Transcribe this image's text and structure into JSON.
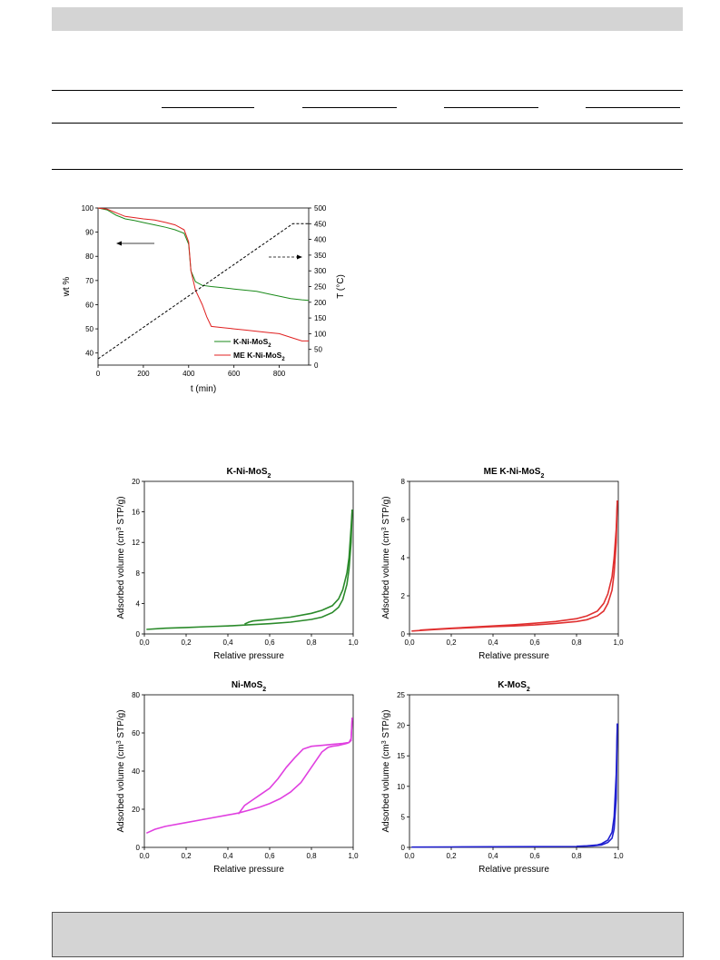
{
  "chart_data": [
    {
      "type": "line",
      "xlabel": "t (min)",
      "ylabel": "wt %",
      "y2label": "T (°C)",
      "xlim": [
        0,
        930
      ],
      "ylim": [
        35,
        100
      ],
      "y2lim": [
        0,
        500
      ],
      "xticks": [
        0,
        200,
        400,
        600,
        800
      ],
      "yticks": [
        40,
        50,
        60,
        70,
        80,
        90,
        100
      ],
      "y2ticks": [
        0,
        50,
        100,
        150,
        200,
        250,
        300,
        350,
        400,
        450,
        500
      ],
      "series": [
        {
          "name": "K-Ni-MoS2",
          "color": "#1a8a1a",
          "axis": "left",
          "x": [
            0,
            40,
            80,
            120,
            160,
            200,
            250,
            300,
            340,
            380,
            400,
            410,
            430,
            460,
            500,
            550,
            600,
            650,
            700,
            750,
            800,
            850,
            900,
            930
          ],
          "y": [
            100,
            99.2,
            97,
            95.5,
            94.8,
            94,
            93,
            92,
            91,
            89.5,
            85,
            74,
            69.5,
            68,
            67.5,
            67,
            66.5,
            66,
            65.5,
            64.5,
            63.5,
            62.5,
            62,
            61.8
          ]
        },
        {
          "name": "ME K-Ni-MoS2",
          "color": "#e02020",
          "axis": "left",
          "x": [
            0,
            40,
            80,
            120,
            160,
            200,
            250,
            300,
            340,
            380,
            400,
            410,
            430,
            460,
            480,
            500,
            550,
            600,
            650,
            700,
            750,
            800,
            850,
            900,
            930
          ],
          "y": [
            100,
            99.5,
            98,
            96.5,
            96,
            95.5,
            95,
            94,
            93,
            91,
            86,
            74,
            66,
            60,
            55,
            51,
            50.5,
            50,
            49.5,
            49,
            48.5,
            48,
            46.5,
            45,
            45
          ]
        },
        {
          "name": "T",
          "color": "#000000",
          "axis": "right",
          "dash": true,
          "x": [
            0,
            860,
            930
          ],
          "y": [
            20,
            450,
            450
          ]
        }
      ],
      "legend": [
        "K-Ni-MoS2",
        "ME K-Ni-MoS2"
      ]
    },
    {
      "type": "line",
      "title": "K-Ni-MoS2",
      "color": "#2a8a2a",
      "xlabel": "Relative pressure",
      "ylabel": "Adsorbed volume (cm3 STP/g)",
      "xlim": [
        0,
        1.0
      ],
      "ylim": [
        0,
        20
      ],
      "xticks": [
        "0,0",
        "0,2",
        "0,4",
        "0,6",
        "0,8",
        "1,0"
      ],
      "yticks": [
        0,
        4,
        8,
        12,
        16,
        20
      ],
      "series": [
        {
          "name": "adsorption",
          "x": [
            0.01,
            0.1,
            0.2,
            0.3,
            0.4,
            0.5,
            0.6,
            0.7,
            0.8,
            0.85,
            0.9,
            0.93,
            0.95,
            0.97,
            0.98,
            0.99,
            0.995
          ],
          "y": [
            0.6,
            0.75,
            0.85,
            0.95,
            1.05,
            1.2,
            1.35,
            1.55,
            1.9,
            2.2,
            2.8,
            3.5,
            4.5,
            6.5,
            8.5,
            12,
            16.3
          ]
        },
        {
          "name": "desorption",
          "x": [
            0.995,
            0.99,
            0.98,
            0.97,
            0.95,
            0.93,
            0.9,
            0.85,
            0.8,
            0.7,
            0.6,
            0.52,
            0.5,
            0.48
          ],
          "y": [
            16.3,
            14,
            10,
            8,
            5.8,
            4.6,
            3.7,
            3.1,
            2.7,
            2.2,
            1.9,
            1.7,
            1.55,
            1.3
          ]
        }
      ]
    },
    {
      "type": "line",
      "title": "ME K-Ni-MoS2",
      "color": "#e03030",
      "xlabel": "Relative pressure",
      "ylabel": "Adsorbed volume (cm3 STP/g)",
      "xlim": [
        0,
        1.0
      ],
      "ylim": [
        0,
        8
      ],
      "xticks": [
        "0,0",
        "0,2",
        "0,4",
        "0,6",
        "0,8",
        "1,0"
      ],
      "yticks": [
        0,
        2,
        4,
        6,
        8
      ],
      "series": [
        {
          "name": "adsorption",
          "x": [
            0.01,
            0.1,
            0.2,
            0.3,
            0.4,
            0.5,
            0.6,
            0.7,
            0.8,
            0.85,
            0.9,
            0.93,
            0.95,
            0.97,
            0.98,
            0.99,
            0.995
          ],
          "y": [
            0.15,
            0.22,
            0.28,
            0.33,
            0.38,
            0.42,
            0.47,
            0.55,
            0.65,
            0.75,
            0.95,
            1.2,
            1.6,
            2.3,
            3.2,
            4.8,
            7.0
          ]
        },
        {
          "name": "desorption",
          "x": [
            0.995,
            0.99,
            0.98,
            0.97,
            0.95,
            0.93,
            0.9,
            0.85,
            0.8,
            0.7,
            0.6,
            0.5,
            0.4,
            0.3,
            0.2,
            0.1,
            0.05
          ],
          "y": [
            7.0,
            5.5,
            4.0,
            3.0,
            2.1,
            1.6,
            1.2,
            0.95,
            0.8,
            0.65,
            0.56,
            0.48,
            0.42,
            0.36,
            0.3,
            0.24,
            0.2
          ]
        }
      ]
    },
    {
      "type": "line",
      "title": "Ni-MoS2",
      "color": "#e040e0",
      "xlabel": "Relative pressure",
      "ylabel": "Adsorbed volume (cm3 STP/g)",
      "xlim": [
        0,
        1.0
      ],
      "ylim": [
        0,
        80
      ],
      "xticks": [
        "0,0",
        "0,2",
        "0,4",
        "0,6",
        "0,8",
        "1,0"
      ],
      "yticks": [
        0,
        20,
        40,
        60,
        80
      ],
      "series": [
        {
          "name": "adsorption",
          "x": [
            0.01,
            0.05,
            0.1,
            0.2,
            0.3,
            0.4,
            0.45,
            0.5,
            0.55,
            0.6,
            0.65,
            0.7,
            0.75,
            0.8,
            0.85,
            0.88,
            0.9,
            0.93,
            0.95,
            0.97,
            0.98,
            0.99,
            0.995
          ],
          "y": [
            7.5,
            9.5,
            11,
            13,
            15,
            17,
            18,
            19.5,
            21,
            23,
            25.5,
            29,
            34,
            42,
            50,
            52.5,
            53,
            53.5,
            54,
            54.5,
            55,
            57,
            68
          ]
        },
        {
          "name": "desorption",
          "x": [
            0.995,
            0.99,
            0.98,
            0.95,
            0.9,
            0.85,
            0.8,
            0.76,
            0.72,
            0.68,
            0.64,
            0.6,
            0.56,
            0.52,
            0.48,
            0.45
          ],
          "y": [
            68,
            56,
            55,
            54.5,
            54,
            53.5,
            53,
            51.5,
            47,
            42,
            36,
            31,
            28,
            25,
            22,
            17.5
          ]
        }
      ]
    },
    {
      "type": "line",
      "title": "K-MoS2",
      "color": "#2020d0",
      "xlabel": "Relative pressure",
      "ylabel": "Adsorbed volume (cm3 STP/g)",
      "xlim": [
        0,
        1.0
      ],
      "ylim": [
        0,
        25
      ],
      "xticks": [
        "0,0",
        "0,2",
        "0,4",
        "0,6",
        "0,8",
        "1,0"
      ],
      "yticks": [
        0,
        5,
        10,
        15,
        20,
        25
      ],
      "series": [
        {
          "name": "adsorption",
          "x": [
            0.01,
            0.2,
            0.4,
            0.6,
            0.8,
            0.88,
            0.92,
            0.95,
            0.97,
            0.98,
            0.99,
            0.995
          ],
          "y": [
            0.05,
            0.08,
            0.1,
            0.12,
            0.15,
            0.25,
            0.4,
            0.8,
            1.5,
            3,
            8,
            20.3
          ]
        },
        {
          "name": "desorption",
          "x": [
            0.995,
            0.99,
            0.98,
            0.97,
            0.95,
            0.92,
            0.9,
            0.85,
            0.8
          ],
          "y": [
            20.3,
            12,
            5,
            2.5,
            1.2,
            0.6,
            0.4,
            0.25,
            0.18
          ]
        }
      ]
    }
  ]
}
